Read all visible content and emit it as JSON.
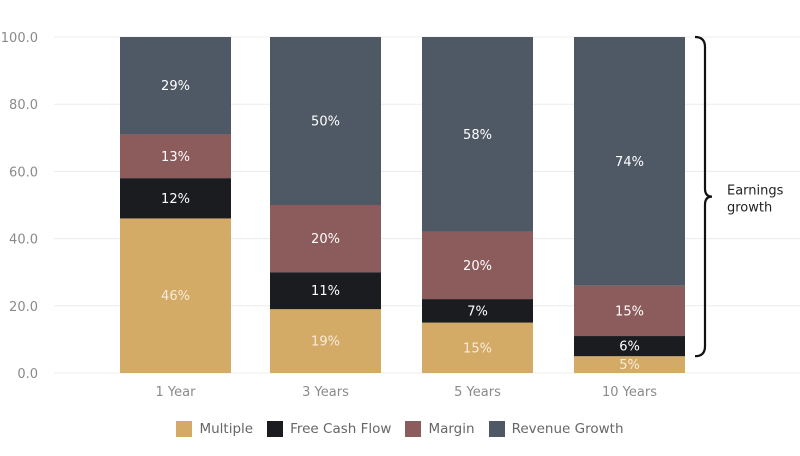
{
  "chart_data": {
    "type": "bar",
    "stacked": true,
    "title": "",
    "xlabel": "",
    "ylabel": "",
    "ylim": [
      0,
      100
    ],
    "yticks": [
      "0.0",
      "20.0",
      "40.0",
      "60.0",
      "80.0",
      "100.0"
    ],
    "ytick_values": [
      0,
      20,
      40,
      60,
      80,
      100
    ],
    "grid": true,
    "categories": [
      "1 Year",
      "3 Years",
      "5 Years",
      "10 Years"
    ],
    "series": [
      {
        "name": "Multiple",
        "color": "#d4aa67",
        "values": [
          46,
          19,
          15,
          5
        ],
        "labels": [
          "46%",
          "19%",
          "15%",
          "5%"
        ]
      },
      {
        "name": "Free Cash Flow",
        "color": "#1b1c20",
        "values": [
          12,
          11,
          7,
          6
        ],
        "labels": [
          "12%",
          "11%",
          "7%",
          "6%"
        ]
      },
      {
        "name": "Margin",
        "color": "#8c5b5c",
        "values": [
          13,
          20,
          20,
          15
        ],
        "labels": [
          "13%",
          "20%",
          "20%",
          "15%"
        ]
      },
      {
        "name": "Revenue Growth",
        "color": "#4f5965",
        "values": [
          29,
          50,
          58,
          74
        ],
        "labels": [
          "29%",
          "50%",
          "58%",
          "74%"
        ]
      }
    ],
    "legend_position": "bottom-center",
    "annotation": {
      "text_line1": "Earnings",
      "text_line2": "growth",
      "spans_from_value": 5,
      "spans_to_value": 100,
      "category": "10 Years"
    }
  }
}
